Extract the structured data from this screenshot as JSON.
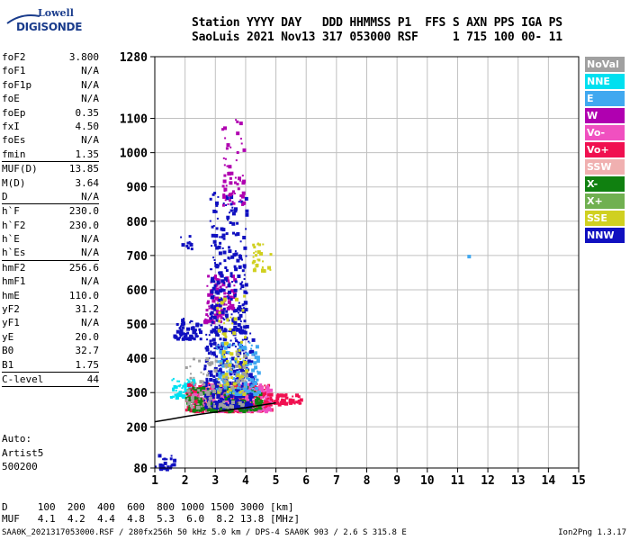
{
  "logo": {
    "top": "Lowell",
    "bottom": "DIGISONDE"
  },
  "header": {
    "line1": "Station YYYY DAY   DDD HHMMSS P1  FFS S AXN PPS IGA PS",
    "line2": "SaoLuis 2021 Nov13 317 053000 RSF     1 715 100 00- 11"
  },
  "params": [
    {
      "name": "foF2",
      "value": "3.800"
    },
    {
      "name": "foF1",
      "value": "N/A"
    },
    {
      "name": "foF1p",
      "value": "N/A"
    },
    {
      "name": "foE",
      "value": "N/A"
    },
    {
      "name": "foEp",
      "value": "0.35"
    },
    {
      "name": "fxI",
      "value": "4.50"
    },
    {
      "name": "foEs",
      "value": "N/A"
    },
    {
      "name": "fmin",
      "value": "1.35"
    },
    {
      "name": "MUF(D)",
      "value": "13.85"
    },
    {
      "name": "M(D)",
      "value": "3.64"
    },
    {
      "name": "D",
      "value": "N/A"
    },
    {
      "name": "h`F",
      "value": "230.0"
    },
    {
      "name": "h`F2",
      "value": "230.0"
    },
    {
      "name": "h`E",
      "value": "N/A"
    },
    {
      "name": "h`Es",
      "value": "N/A"
    },
    {
      "name": "hmF2",
      "value": "256.6"
    },
    {
      "name": "hmF1",
      "value": "N/A"
    },
    {
      "name": "hmE",
      "value": "110.0"
    },
    {
      "name": "yF2",
      "value": "31.2"
    },
    {
      "name": "yF1",
      "value": "N/A"
    },
    {
      "name": "yE",
      "value": "20.0"
    },
    {
      "name": "B0",
      "value": "32.7"
    },
    {
      "name": "B1",
      "value": "1.75"
    },
    {
      "name": "C-level",
      "value": "44"
    }
  ],
  "auto": {
    "line1": "Auto:",
    "line2": "Artist5",
    "line3": "500200"
  },
  "legend": [
    {
      "label": "NoVal",
      "color": "#a0a0a0"
    },
    {
      "label": "NNE",
      "color": "#00e0f0"
    },
    {
      "label": "E",
      "color": "#40a8f0"
    },
    {
      "label": "W",
      "color": "#b000b0"
    },
    {
      "label": "Vo-",
      "color": "#f050c0"
    },
    {
      "label": "Vo+",
      "color": "#f01050"
    },
    {
      "label": "SSW",
      "color": "#f0b0b0"
    },
    {
      "label": "X-",
      "color": "#108010"
    },
    {
      "label": "X+",
      "color": "#70b050"
    },
    {
      "label": "SSE",
      "color": "#d0d020"
    },
    {
      "label": "NNW",
      "color": "#1010c0"
    }
  ],
  "muf_table": {
    "d_line": "D     100  200  400  600  800 1000 1500 3000 [km]",
    "muf_line": "MUF   4.1  4.2  4.4  4.8  5.3  6.0  8.2 13.8 [MHz]"
  },
  "footer": "SAA0K_2021317053000.RSF / 280fx256h 50 kHz 5.0 km / DPS-4 SAA0K 903 / 2.6 S 315.8 E",
  "version": "Ion2Png 1.3.17",
  "chart_data": {
    "type": "scatter",
    "xlabel": "",
    "ylabel": "",
    "xlim": [
      1,
      15
    ],
    "ylim": [
      80,
      1280
    ],
    "xticks": [
      1,
      2,
      3,
      4,
      5,
      6,
      7,
      8,
      9,
      10,
      11,
      12,
      13,
      14,
      15
    ],
    "yticks": [
      80,
      200,
      300,
      400,
      500,
      600,
      700,
      800,
      900,
      1000,
      1100,
      1280
    ],
    "grid": true,
    "trace": {
      "name": "",
      "x": [
        1.0,
        1.5,
        2.0,
        2.5,
        3.0,
        3.5,
        4.0,
        4.5,
        5.0
      ],
      "y": [
        215,
        222,
        230,
        237,
        243,
        250,
        256,
        263,
        270
      ]
    },
    "clusters": [
      {
        "x": [
          1.0,
          1.6
        ],
        "y": [
          80,
          130
        ],
        "n": 25,
        "color": "#1010c0"
      },
      {
        "x": [
          1.8,
          2.2
        ],
        "y": [
          720,
          760
        ],
        "n": 10,
        "color": "#1010c0"
      },
      {
        "x": [
          1.6,
          2.5
        ],
        "y": [
          460,
          520
        ],
        "n": 60,
        "color": "#1010c0"
      },
      {
        "x": [
          2.6,
          3.2
        ],
        "y": [
          510,
          560
        ],
        "n": 40,
        "color": "#b000b0"
      },
      {
        "x": [
          2.7,
          3.6
        ],
        "y": [
          550,
          650
        ],
        "n": 70,
        "color": "#b000b0"
      },
      {
        "x": [
          1.5,
          2.3
        ],
        "y": [
          290,
          350
        ],
        "n": 60,
        "color": "#00e0f0"
      },
      {
        "x": [
          2.0,
          4.8
        ],
        "y": [
          250,
          330
        ],
        "n": 450,
        "color": "#f01050"
      },
      {
        "x": [
          2.2,
          4.8
        ],
        "y": [
          250,
          330
        ],
        "n": 250,
        "color": "#f050c0"
      },
      {
        "x": [
          2.0,
          4.5
        ],
        "y": [
          250,
          320
        ],
        "n": 200,
        "color": "#108010"
      },
      {
        "x": [
          2.6,
          4.2
        ],
        "y": [
          260,
          480
        ],
        "n": 350,
        "color": "#1010c0"
      },
      {
        "x": [
          2.8,
          4.0
        ],
        "y": [
          480,
          900
        ],
        "n": 250,
        "color": "#1010c0"
      },
      {
        "x": [
          3.2,
          3.9
        ],
        "y": [
          850,
          1100
        ],
        "n": 60,
        "color": "#b000b0"
      },
      {
        "x": [
          4.2,
          4.8
        ],
        "y": [
          660,
          740
        ],
        "n": 30,
        "color": "#d0d020"
      },
      {
        "x": [
          4.6,
          5.8
        ],
        "y": [
          270,
          300
        ],
        "n": 60,
        "color": "#f01050"
      },
      {
        "x": [
          3.0,
          4.4
        ],
        "y": [
          300,
          450
        ],
        "n": 150,
        "color": "#40a8f0"
      },
      {
        "x": [
          3.0,
          4.0
        ],
        "y": [
          300,
          600
        ],
        "n": 80,
        "color": "#d0d020"
      },
      {
        "x": [
          2.0,
          4.0
        ],
        "y": [
          260,
          420
        ],
        "n": 100,
        "color": "#a0a0a0"
      },
      {
        "x": [
          11.3,
          11.4
        ],
        "y": [
          700,
          706
        ],
        "n": 1,
        "color": "#40a8f0"
      }
    ]
  }
}
